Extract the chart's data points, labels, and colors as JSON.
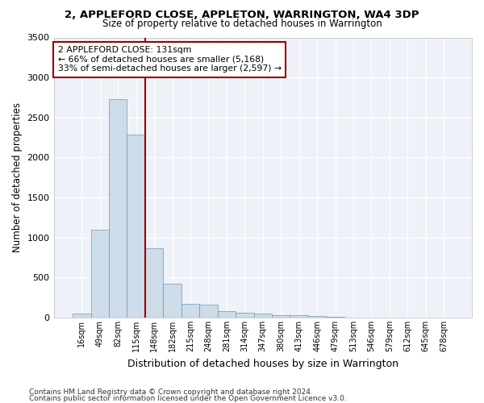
{
  "title": "2, APPLEFORD CLOSE, APPLETON, WARRINGTON, WA4 3DP",
  "subtitle": "Size of property relative to detached houses in Warrington",
  "xlabel": "Distribution of detached houses by size in Warrington",
  "ylabel": "Number of detached properties",
  "bar_color": "#ccdce8",
  "bar_edgecolor": "#7096b8",
  "background_color": "#eef2f8",
  "grid_color": "#ffffff",
  "categories": [
    "16sqm",
    "49sqm",
    "82sqm",
    "115sqm",
    "148sqm",
    "182sqm",
    "215sqm",
    "248sqm",
    "281sqm",
    "314sqm",
    "347sqm",
    "380sqm",
    "413sqm",
    "446sqm",
    "479sqm",
    "513sqm",
    "546sqm",
    "579sqm",
    "612sqm",
    "645sqm",
    "678sqm"
  ],
  "values": [
    50,
    1100,
    2730,
    2290,
    870,
    420,
    170,
    160,
    85,
    60,
    50,
    35,
    30,
    20,
    10,
    0,
    5,
    0,
    0,
    0,
    0
  ],
  "vline_x_index": 3.5,
  "vline_color": "#990000",
  "annotation_text": "2 APPLEFORD CLOSE: 131sqm\n← 66% of detached houses are smaller (5,168)\n33% of semi-detached houses are larger (2,597) →",
  "annotation_box_color": "#990000",
  "ylim": [
    0,
    3500
  ],
  "yticks": [
    0,
    500,
    1000,
    1500,
    2000,
    2500,
    3000,
    3500
  ],
  "footnote1": "Contains HM Land Registry data © Crown copyright and database right 2024.",
  "footnote2": "Contains public sector information licensed under the Open Government Licence v3.0."
}
